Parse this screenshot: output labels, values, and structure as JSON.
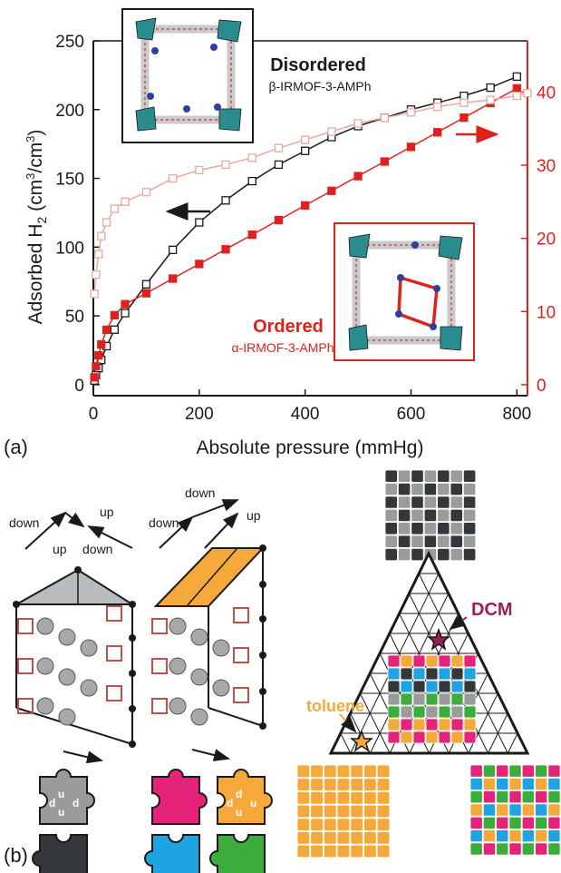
{
  "panel_a_label": "(a)",
  "panel_b_label": "(b)",
  "colors": {
    "axis_black": "#1a1a1a",
    "accent_red": "#e0211b",
    "pale_red": "#e9a8a2",
    "grey_piece": "#9b9b9b",
    "dark_piece": "#34383b",
    "magenta": "#e6237a",
    "orange": "#f6a93b",
    "blue": "#1ea4e0",
    "green": "#3cad3c",
    "dcm_color": "#9a1f5a"
  },
  "chart_data": {
    "type": "scatter",
    "xlabel": "Absolute pressure (mmHg)",
    "ylabel_left": "Adsorbed H",
    "ylabel_left_sub": "2",
    "ylabel_left_unit": "(cm",
    "ylabel_left_tail": "/cm",
    "ylabel_left_end": ")",
    "sup3": "3",
    "xlim": [
      0,
      820
    ],
    "ylim_left": [
      -8,
      250
    ],
    "ylim_right": [
      -1.5,
      47
    ],
    "x_ticks": [
      0,
      200,
      400,
      600,
      800
    ],
    "y_left_ticks": [
      0,
      50,
      100,
      150,
      200,
      250
    ],
    "y_right_ticks": [
      0,
      10,
      20,
      30,
      40
    ],
    "series": [
      {
        "name": "Disordered",
        "subname": "β-IRMOF-3-AMPh",
        "axis": "left",
        "x": [
          2,
          5,
          10,
          15,
          25,
          40,
          60,
          100,
          150,
          200,
          250,
          300,
          350,
          400,
          450,
          500,
          550,
          600,
          650,
          700,
          750,
          800
        ],
        "y": [
          3,
          7,
          12,
          18,
          28,
          40,
          52,
          73,
          98,
          118,
          134,
          148,
          160,
          170,
          180,
          188,
          194,
          200,
          205,
          210,
          216,
          224
        ]
      },
      {
        "name": "Ordered",
        "subname": "α-IRMOF-3-AMPh",
        "axis": "right",
        "x": [
          2,
          5,
          10,
          15,
          25,
          40,
          60,
          100,
          150,
          200,
          250,
          300,
          350,
          400,
          450,
          500,
          550,
          600,
          650,
          700,
          750,
          800
        ],
        "y": [
          1,
          2.5,
          4,
          5.5,
          7.5,
          9.5,
          11,
          12.5,
          14.5,
          16.5,
          18.5,
          20.5,
          22.5,
          24.5,
          26.5,
          28.5,
          30.5,
          32.5,
          34.5,
          36.5,
          38.5,
          40.5
        ]
      },
      {
        "axis": "left",
        "x": [
          2,
          5,
          10,
          15,
          25,
          40,
          60,
          100,
          150,
          200,
          250,
          300,
          350,
          400,
          450,
          500,
          550,
          600,
          650,
          700,
          750,
          800,
          820
        ],
        "y": [
          66,
          80,
          95,
          108,
          118,
          128,
          133,
          140,
          150,
          156,
          160,
          165,
          172,
          178,
          184,
          190,
          194,
          198,
          202,
          205,
          207,
          210,
          212
        ]
      }
    ]
  },
  "panel_b": {
    "arrow_labels": {
      "down": "down",
      "up": "up"
    },
    "piece_letters": {
      "d": "d",
      "u": "u"
    },
    "dcm": "DCM",
    "toluene": "toluene"
  }
}
